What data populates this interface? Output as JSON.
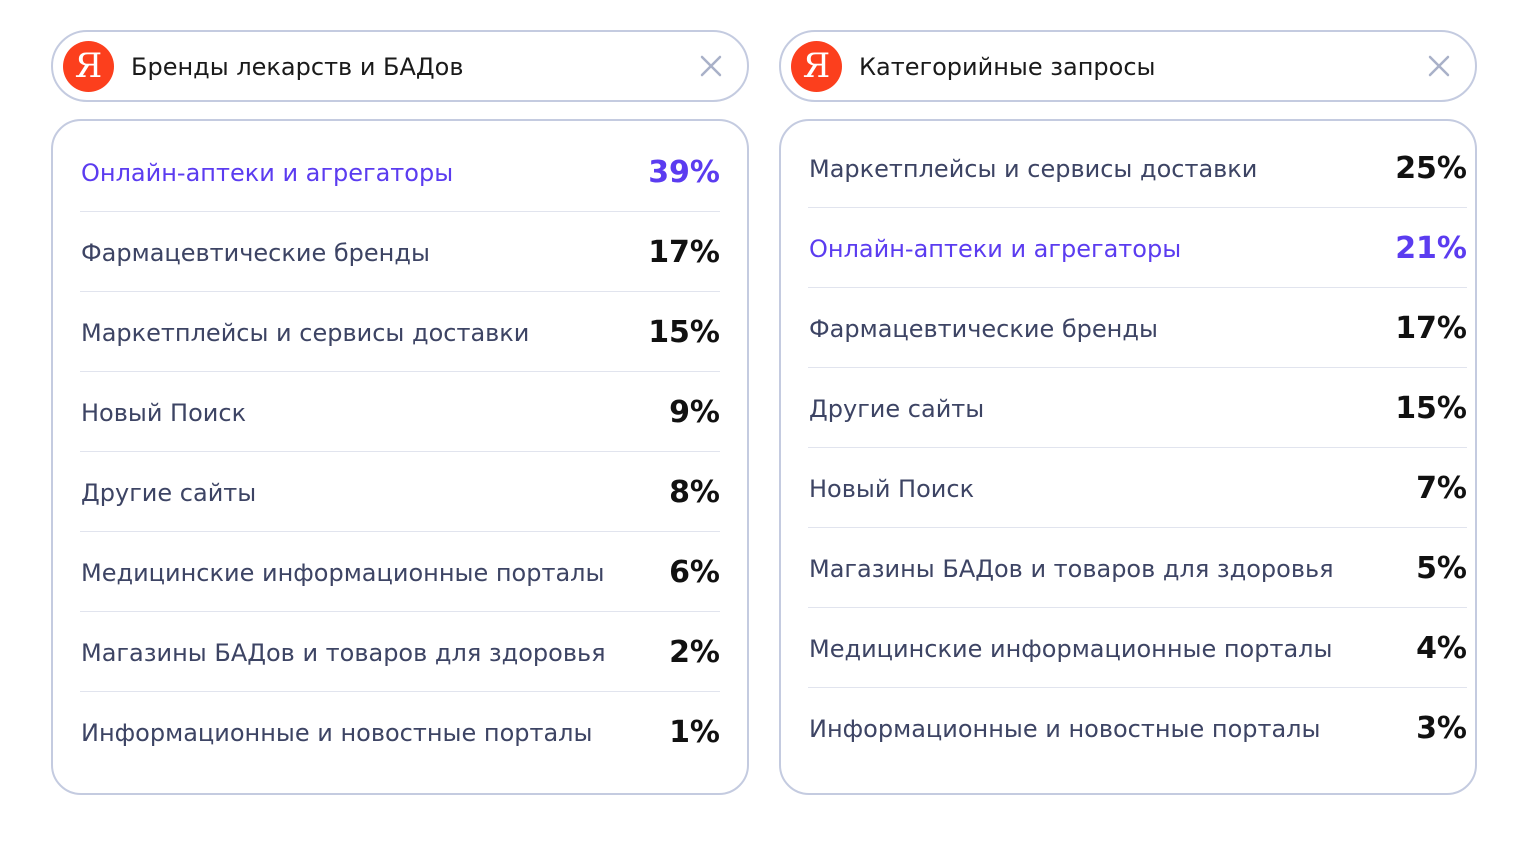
{
  "colors": {
    "accent": "#5b3cf0",
    "logo": "#fc3f1d",
    "border": "#c4cbe0",
    "label": "#3d4464"
  },
  "panels": [
    {
      "logo_letter": "Я",
      "query": "Бренды лекарств и БАДов",
      "close_icon": "close-icon",
      "rows": [
        {
          "label": "Онлайн-аптеки и агрегаторы",
          "value": "39%"
        },
        {
          "label": "Фармацевтические бренды",
          "value": "17%"
        },
        {
          "label": "Маркетплейсы и сервисы доставки",
          "value": "15%"
        },
        {
          "label": "Новый Поиск",
          "value": "9%"
        },
        {
          "label": "Другие сайты",
          "value": "8%"
        },
        {
          "label": "Медицинские информационные порталы",
          "value": "6%"
        },
        {
          "label": "Магазины БАДов и товаров для здоровья",
          "value": "2%"
        },
        {
          "label": "Информационные и новостные порталы",
          "value": "1%"
        }
      ]
    },
    {
      "logo_letter": "Я",
      "query": "Категорийные запросы",
      "close_icon": "close-icon",
      "rows": [
        {
          "label": "Маркетплейсы и сервисы доставки",
          "value": "25%"
        },
        {
          "label": "Онлайн-аптеки и агрегаторы",
          "value": "21%"
        },
        {
          "label": "Фармацевтические бренды",
          "value": "17%"
        },
        {
          "label": "Другие сайты",
          "value": "15%"
        },
        {
          "label": "Новый Поиск",
          "value": "7%"
        },
        {
          "label": "Магазины БАДов и товаров для здоровья",
          "value": "5%"
        },
        {
          "label": "Медицинские информационные порталы",
          "value": "4%"
        },
        {
          "label": "Информационные и новостные порталы",
          "value": "3%"
        }
      ]
    }
  ]
}
